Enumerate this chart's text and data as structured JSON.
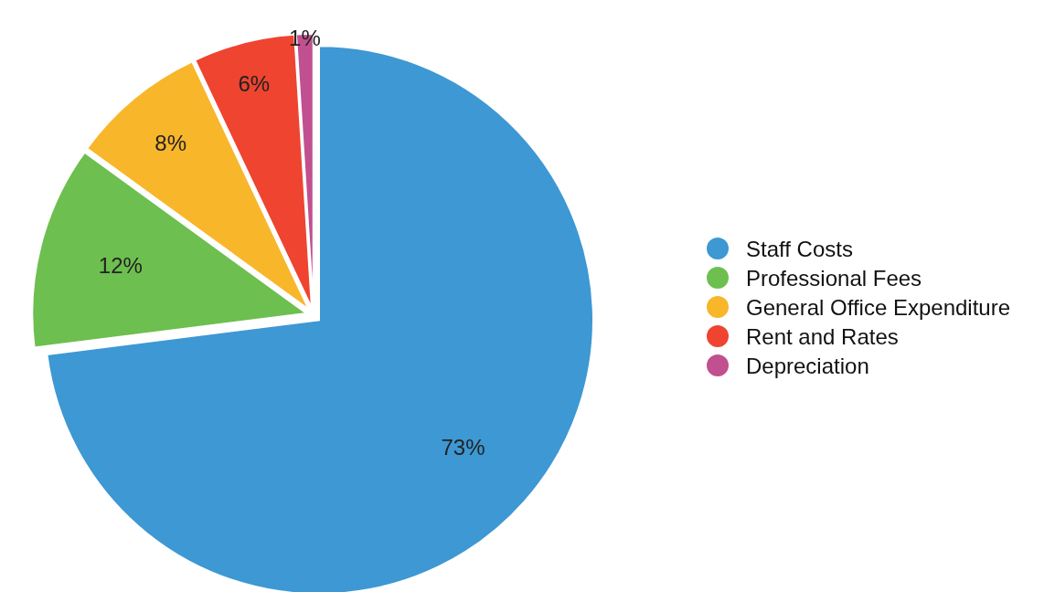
{
  "chart_data": {
    "type": "pie",
    "categories": [
      "Staff Costs",
      "Professional Fees",
      "General Office Expenditure",
      "Rent and Rates",
      "Depreciation"
    ],
    "values": [
      73,
      12,
      8,
      6,
      1
    ],
    "colors": [
      "#3d98d3",
      "#6dbf4f",
      "#f8b62b",
      "#ee4430",
      "#c0508f"
    ],
    "value_labels": [
      "73%",
      "12%",
      "8%",
      "6%",
      "1%"
    ],
    "legend": "right"
  }
}
